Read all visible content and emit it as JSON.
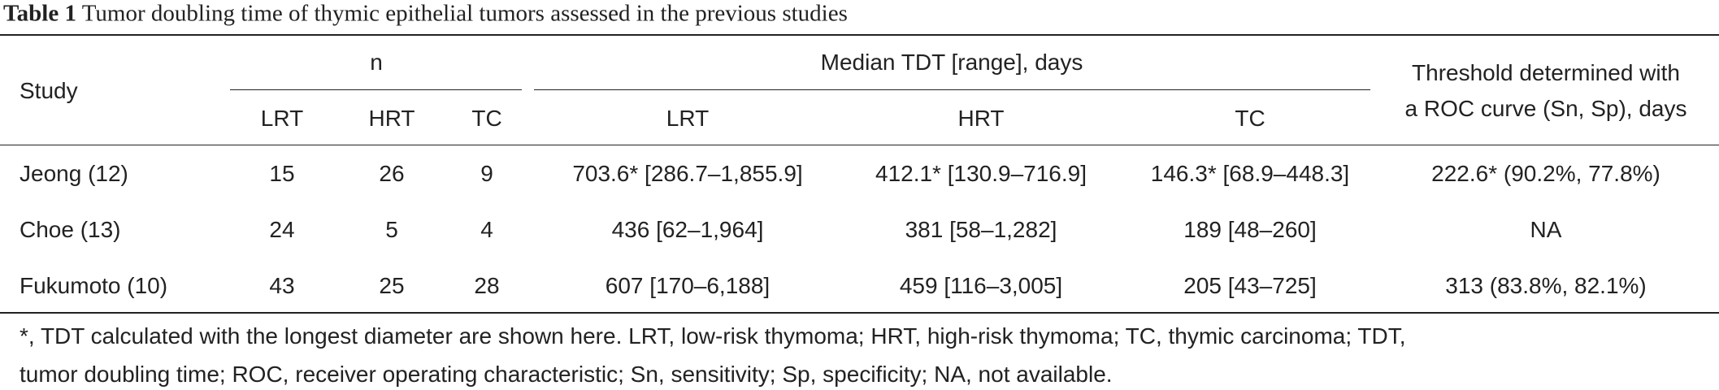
{
  "caption": {
    "label": "Table 1",
    "text": "Tumor doubling time of thymic epithelial tumors assessed in the previous studies"
  },
  "table": {
    "header": {
      "study": "Study",
      "n": "n",
      "median": "Median TDT [range], days",
      "threshold": [
        "Threshold determined with",
        "a ROC curve (Sn, Sp), days"
      ],
      "n_sub": [
        "LRT",
        "HRT",
        "TC"
      ],
      "median_sub": [
        "LRT",
        "HRT",
        "TC"
      ]
    },
    "rows": [
      [
        "Jeong (12)",
        "15",
        "26",
        "9",
        "703.6* [286.7–1,855.9]",
        "412.1* [130.9–716.9]",
        "146.3* [68.9–448.3]",
        "222.6* (90.2%, 77.8%)"
      ],
      [
        "Choe (13)",
        "24",
        "5",
        "4",
        "436 [62–1,964]",
        "381 [58–1,282]",
        "189 [48–260]",
        "NA"
      ],
      [
        "Fukumoto (10)",
        "43",
        "25",
        "28",
        "607 [170–6,188]",
        "459 [116–3,005]",
        "205 [43–725]",
        "313 (83.8%, 82.1%)"
      ]
    ]
  },
  "footnote": [
    "*, TDT calculated with the longest diameter are shown here. LRT, low-risk thymoma; HRT, high-risk thymoma; TC, thymic carcinoma; TDT,",
    "tumor doubling time; ROC, receiver operating characteristic; Sn, sensitivity; Sp, specificity; NA, not available."
  ]
}
